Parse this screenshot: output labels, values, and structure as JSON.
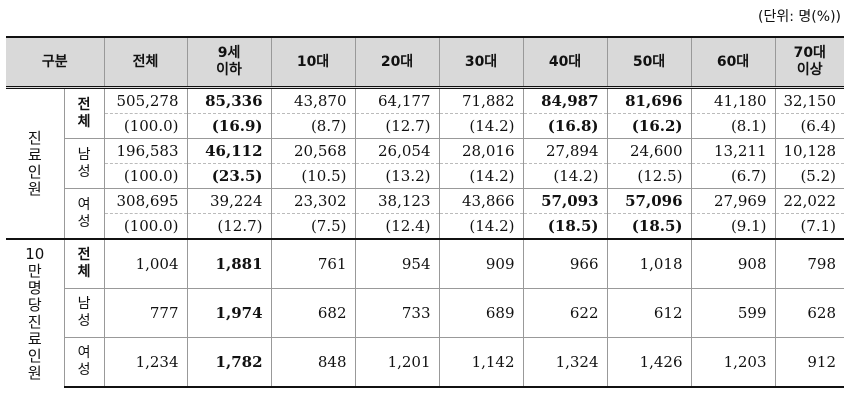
{
  "unit": "(단위: 명(%))",
  "headers": [
    "구분",
    "전체",
    "9세\n이하",
    "10대",
    "20대",
    "30대",
    "40대",
    "50대",
    "60대",
    "70대\n이상"
  ],
  "groups": [
    {
      "label": "진\n료\n인\n원",
      "rows": [
        {
          "sub": "전\n체",
          "counts": [
            "505,278",
            "85,336",
            "43,870",
            "64,177",
            "71,882",
            "84,987",
            "81,696",
            "41,180",
            "32,150"
          ],
          "pcts": [
            "(100.0)",
            "(16.9)",
            "(8.7)",
            "(12.7)",
            "(14.2)",
            "(16.8)",
            "(16.2)",
            "(8.1)",
            "(6.4)"
          ]
        },
        {
          "sub": "남\n성",
          "counts": [
            "196,583",
            "46,112",
            "20,568",
            "26,054",
            "28,016",
            "27,894",
            "24,600",
            "13,211",
            "10,128"
          ],
          "pcts": [
            "(100.0)",
            "(23.5)",
            "(10.5)",
            "(13.2)",
            "(14.2)",
            "(14.2)",
            "(12.5)",
            "(6.7)",
            "(5.2)"
          ]
        },
        {
          "sub": "여\n성",
          "counts": [
            "308,695",
            "39,224",
            "23,302",
            "38,123",
            "43,866",
            "57,093",
            "57,096",
            "27,969",
            "22,022"
          ],
          "pcts": [
            "(100.0)",
            "(12.7)",
            "(7.5)",
            "(12.4)",
            "(14.2)",
            "(18.5)",
            "(18.5)",
            "(9.1)",
            "(7.1)"
          ]
        }
      ]
    },
    {
      "label": "10\n만\n명\n당\n진\n료\n인\n원",
      "rows": [
        {
          "sub": "전\n체",
          "values": [
            "1,004",
            "1,881",
            "761",
            "954",
            "909",
            "966",
            "1,018",
            "908",
            "798"
          ]
        },
        {
          "sub": "남\n성",
          "values": [
            "777",
            "1,974",
            "682",
            "733",
            "689",
            "622",
            "612",
            "599",
            "628"
          ]
        },
        {
          "sub": "여\n성",
          "values": [
            "1,234",
            "1,782",
            "848",
            "1,201",
            "1,142",
            "1,324",
            "1,426",
            "1,203",
            "912"
          ]
        }
      ]
    }
  ]
}
